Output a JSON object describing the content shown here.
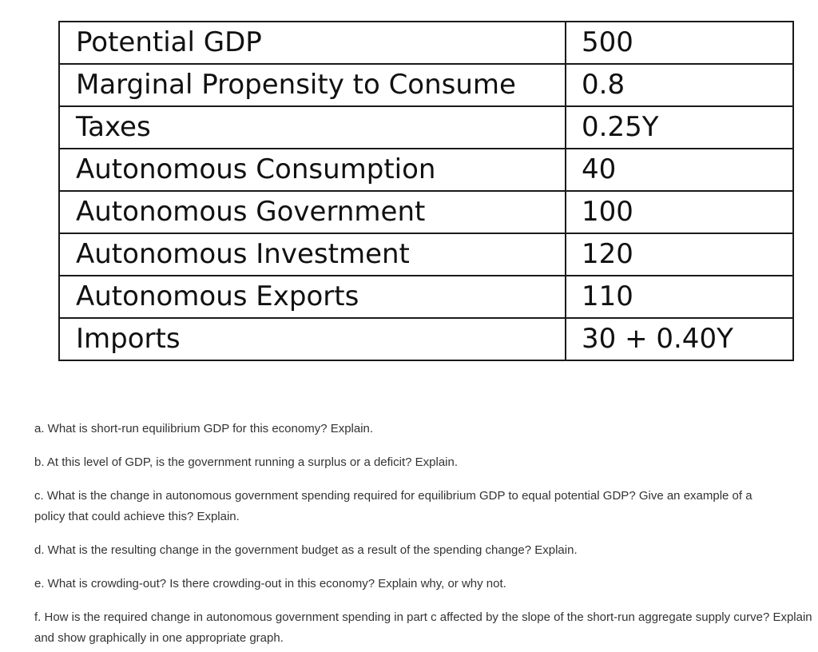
{
  "table": {
    "rows": [
      {
        "label": "Potential GDP",
        "value": "500"
      },
      {
        "label": "Marginal Propensity to Consume",
        "value": "0.8"
      },
      {
        "label": "Taxes",
        "value": "0.25Y"
      },
      {
        "label": "Autonomous Consumption",
        "value": "40"
      },
      {
        "label": "Autonomous Government",
        "value": "100"
      },
      {
        "label": "Autonomous Investment",
        "value": "120"
      },
      {
        "label": "Autonomous Exports",
        "value": "110"
      },
      {
        "label": "Imports",
        "value": "30 + 0.40Y"
      }
    ]
  },
  "questions": {
    "a": "a. What is short-run equilibrium GDP for this economy? Explain.",
    "b": "b. At this level of GDP, is the government running a surplus or a deficit? Explain.",
    "c_line1": "c. What is the change in autonomous government spending required for equilibrium GDP to equal potential GDP? Give an example of a",
    "c_line2": "policy that could achieve this? Explain.",
    "d": "d. What is the resulting change in the government budget as a result of the spending change? Explain.",
    "e": "e. What is crowding-out? Is there crowding-out in this economy? Explain why, or why not.",
    "f": "f. How is the required change in autonomous government spending in part c affected by the slope of the short-run aggregate supply curve? Explain and show graphically in one appropriate graph."
  }
}
